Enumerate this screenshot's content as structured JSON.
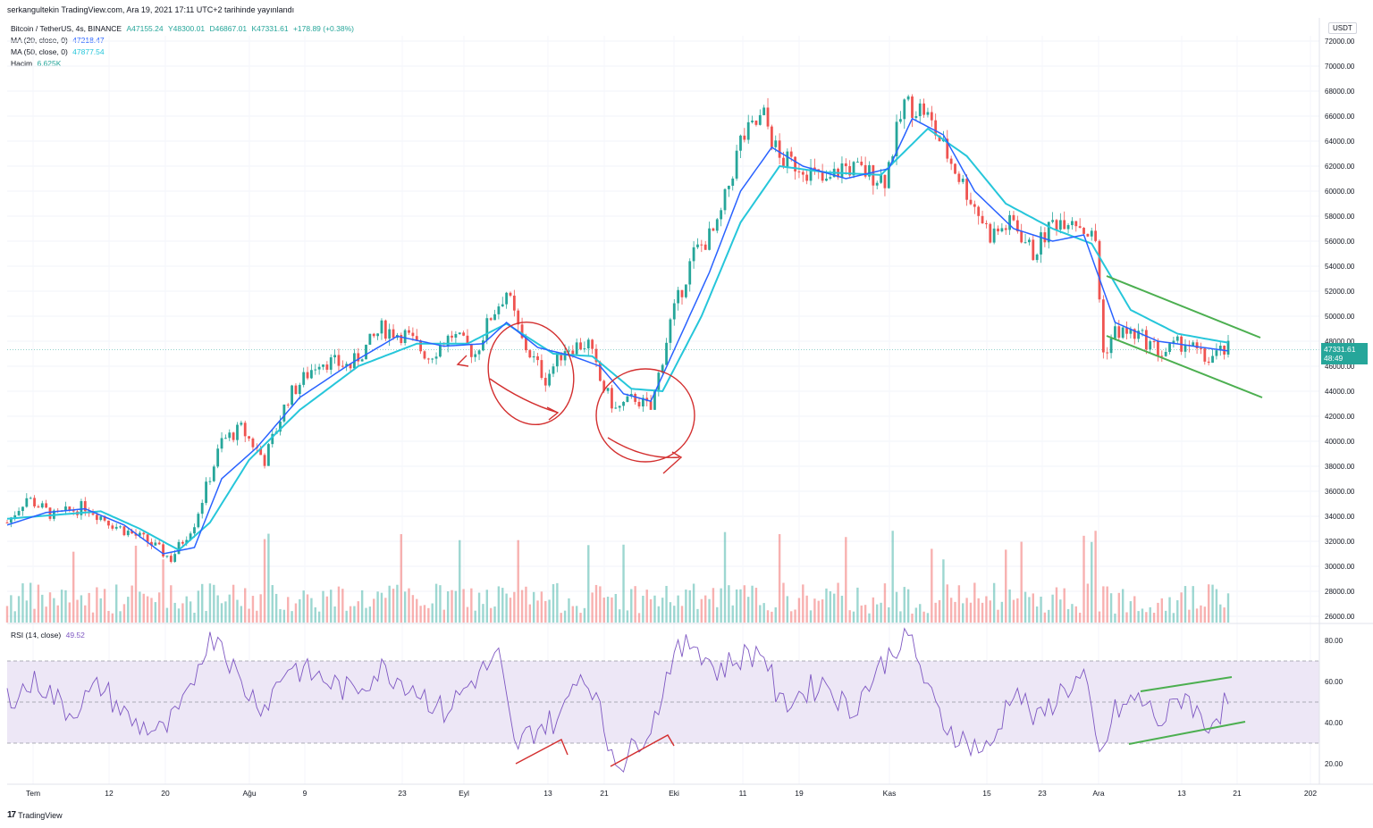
{
  "caption": "serkangultekin TradingView.com, Ara 19, 2021 17:11 UTC+2 tarihinde yayınlandı",
  "legend": {
    "symbol": "Bitcoin / TetherUS, 4s, BINANCE",
    "open": "A47155.24",
    "high": "Y48300.01",
    "low": "D46867.01",
    "close": "K47331.61",
    "change": "+178.89 (+0.38%)",
    "ma20_label": "MA (20, close, 0)",
    "ma20_value": "47218.47",
    "ma50_label": "MA (50, close, 0)",
    "ma50_value": "47877.54",
    "volume_label": "Hacim",
    "volume_value": "6.625K",
    "rsi_label": "RSI (14, close)",
    "rsi_value": "49.52"
  },
  "currency_badge": "USDT",
  "price_badge": {
    "price": "47331.61",
    "countdown": "48:49"
  },
  "footer_logo": "TradingView",
  "colors": {
    "up": "#26a69a",
    "down": "#ef5350",
    "ma20": "#2962ff",
    "ma50": "#26c6da",
    "rsi": "#7e57c2",
    "rsi_band": "#ede7f6",
    "annotation_red": "#d32f2f",
    "annotation_green": "#4caf50"
  },
  "chart_data": {
    "type": "candlestick",
    "title": "Bitcoin / TetherUS, 4s, BINANCE",
    "y_axis_ticks": [
      "72000.00",
      "70000.00",
      "68000.00",
      "66000.00",
      "64000.00",
      "62000.00",
      "60000.00",
      "58000.00",
      "56000.00",
      "54000.00",
      "52000.00",
      "50000.00",
      "48000.00",
      "46000.00",
      "44000.00",
      "42000.00",
      "40000.00",
      "38000.00",
      "36000.00",
      "34000.00",
      "32000.00",
      "30000.00",
      "28000.00",
      "26000.00"
    ],
    "ylim": [
      25000,
      73000
    ],
    "x_axis_ticks": [
      "Tem",
      "12",
      "20",
      "Ağu",
      "9",
      "23",
      "Eyl",
      "13",
      "21",
      "Eki",
      "11",
      "19",
      "Kas",
      "15",
      "23",
      "Ara",
      "13",
      "21",
      "202"
    ],
    "price_path": [
      [
        0,
        33500
      ],
      [
        5,
        35500
      ],
      [
        12,
        34000
      ],
      [
        20,
        34800
      ],
      [
        28,
        33200
      ],
      [
        36,
        32000
      ],
      [
        42,
        30600
      ],
      [
        48,
        33500
      ],
      [
        55,
        40000
      ],
      [
        60,
        41000
      ],
      [
        66,
        38500
      ],
      [
        72,
        43500
      ],
      [
        80,
        46500
      ],
      [
        88,
        46000
      ],
      [
        96,
        49000
      ],
      [
        102,
        48500
      ],
      [
        108,
        46800
      ],
      [
        114,
        48500
      ],
      [
        120,
        47000
      ],
      [
        124,
        50000
      ],
      [
        128,
        52000
      ],
      [
        132,
        48000
      ],
      [
        138,
        45000
      ],
      [
        143,
        47500
      ],
      [
        149,
        47800
      ],
      [
        152,
        44800
      ],
      [
        156,
        42500
      ],
      [
        161,
        43500
      ],
      [
        165,
        42500
      ],
      [
        170,
        49500
      ],
      [
        176,
        55000
      ],
      [
        182,
        57000
      ],
      [
        188,
        64000
      ],
      [
        194,
        66000
      ],
      [
        198,
        62500
      ],
      [
        204,
        62000
      ],
      [
        210,
        60500
      ],
      [
        214,
        62000
      ],
      [
        220,
        61500
      ],
      [
        225,
        61000
      ],
      [
        230,
        67000
      ],
      [
        235,
        66500
      ],
      [
        240,
        63500
      ],
      [
        246,
        60000
      ],
      [
        252,
        56500
      ],
      [
        258,
        57500
      ],
      [
        263,
        55000
      ],
      [
        268,
        57500
      ],
      [
        273,
        58000
      ],
      [
        279,
        56000
      ],
      [
        281,
        47000
      ],
      [
        284,
        48800
      ],
      [
        290,
        48500
      ],
      [
        296,
        47000
      ],
      [
        302,
        48000
      ],
      [
        307,
        46500
      ],
      [
        313,
        47331
      ]
    ],
    "ma20_path": [
      [
        0,
        33300
      ],
      [
        10,
        34300
      ],
      [
        20,
        34600
      ],
      [
        30,
        33300
      ],
      [
        40,
        31000
      ],
      [
        48,
        31500
      ],
      [
        55,
        37000
      ],
      [
        64,
        39500
      ],
      [
        75,
        43500
      ],
      [
        88,
        46200
      ],
      [
        100,
        48400
      ],
      [
        112,
        47600
      ],
      [
        122,
        47800
      ],
      [
        128,
        49500
      ],
      [
        136,
        47500
      ],
      [
        145,
        46800
      ],
      [
        152,
        46000
      ],
      [
        158,
        43800
      ],
      [
        165,
        43200
      ],
      [
        172,
        48000
      ],
      [
        180,
        53500
      ],
      [
        188,
        60000
      ],
      [
        196,
        63500
      ],
      [
        204,
        62000
      ],
      [
        215,
        61000
      ],
      [
        226,
        61800
      ],
      [
        232,
        65800
      ],
      [
        240,
        64500
      ],
      [
        248,
        60000
      ],
      [
        258,
        57000
      ],
      [
        268,
        56000
      ],
      [
        276,
        56500
      ],
      [
        284,
        49500
      ],
      [
        295,
        48000
      ],
      [
        313,
        47218
      ]
    ],
    "ma50_path": [
      [
        0,
        33800
      ],
      [
        12,
        34100
      ],
      [
        24,
        34400
      ],
      [
        34,
        33000
      ],
      [
        44,
        31300
      ],
      [
        52,
        33500
      ],
      [
        62,
        38500
      ],
      [
        75,
        42500
      ],
      [
        90,
        46000
      ],
      [
        105,
        47800
      ],
      [
        118,
        47800
      ],
      [
        128,
        49400
      ],
      [
        140,
        47000
      ],
      [
        150,
        46800
      ],
      [
        160,
        44200
      ],
      [
        168,
        44000
      ],
      [
        178,
        50000
      ],
      [
        188,
        57500
      ],
      [
        198,
        62000
      ],
      [
        210,
        61500
      ],
      [
        224,
        61300
      ],
      [
        236,
        65000
      ],
      [
        246,
        62800
      ],
      [
        256,
        59000
      ],
      [
        268,
        57000
      ],
      [
        278,
        55800
      ],
      [
        288,
        50500
      ],
      [
        300,
        48600
      ],
      [
        313,
        47877
      ]
    ],
    "rsi": {
      "ylim": [
        10,
        90
      ],
      "ticks": [
        "80.00",
        "60.00",
        "40.00",
        "20.00"
      ],
      "overbought": 70,
      "oversold": 30,
      "path": [
        [
          0,
          52
        ],
        [
          8,
          60
        ],
        [
          16,
          45
        ],
        [
          24,
          58
        ],
        [
          32,
          40
        ],
        [
          40,
          35
        ],
        [
          46,
          50
        ],
        [
          50,
          75
        ],
        [
          54,
          84
        ],
        [
          60,
          58
        ],
        [
          66,
          48
        ],
        [
          72,
          68
        ],
        [
          80,
          62
        ],
        [
          88,
          55
        ],
        [
          96,
          66
        ],
        [
          104,
          58
        ],
        [
          112,
          45
        ],
        [
          120,
          62
        ],
        [
          126,
          72
        ],
        [
          130,
          28
        ],
        [
          136,
          38
        ],
        [
          142,
          42
        ],
        [
          146,
          65
        ],
        [
          150,
          58
        ],
        [
          154,
          30
        ],
        [
          158,
          20
        ],
        [
          162,
          32
        ],
        [
          166,
          42
        ],
        [
          170,
          70
        ],
        [
          176,
          80
        ],
        [
          182,
          65
        ],
        [
          188,
          72
        ],
        [
          194,
          75
        ],
        [
          198,
          48
        ],
        [
          204,
          55
        ],
        [
          210,
          60
        ],
        [
          216,
          45
        ],
        [
          222,
          62
        ],
        [
          228,
          78
        ],
        [
          232,
          80
        ],
        [
          236,
          55
        ],
        [
          240,
          40
        ],
        [
          246,
          30
        ],
        [
          252,
          26
        ],
        [
          258,
          58
        ],
        [
          264,
          40
        ],
        [
          270,
          55
        ],
        [
          276,
          62
        ],
        [
          280,
          22
        ],
        [
          284,
          45
        ],
        [
          290,
          52
        ],
        [
          296,
          40
        ],
        [
          302,
          55
        ],
        [
          307,
          38
        ],
        [
          313,
          50
        ]
      ]
    },
    "annotations": "red circles and arrows around Eyl-Eki consolidation; green descending channel on price and ascending channel on RSI near Ara"
  }
}
